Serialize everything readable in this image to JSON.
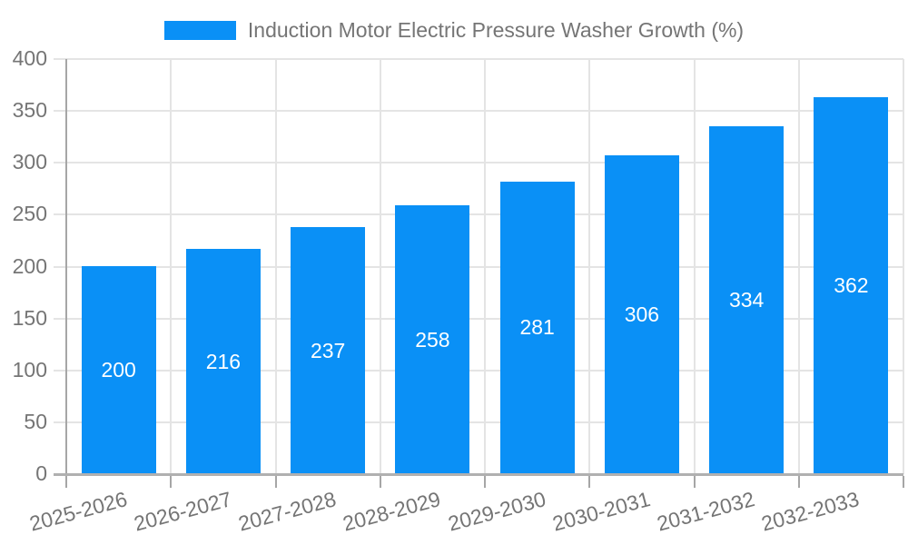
{
  "legend": {
    "label": "Induction Motor Electric Pressure Washer Growth (%)",
    "swatch_color": "#0A90F6"
  },
  "chart_data": {
    "type": "bar",
    "title": "Induction Motor Electric Pressure Washer Growth (%)",
    "categories": [
      "2025-2026",
      "2026-2027",
      "2027-2028",
      "2028-2029",
      "2029-2030",
      "2030-2031",
      "2031-2032",
      "2032-2033"
    ],
    "values": [
      200,
      216,
      237,
      258,
      281,
      306,
      334,
      362
    ],
    "xlabel": "",
    "ylabel": "",
    "ylim": [
      0,
      400
    ],
    "ytick_step": 50,
    "yticks": [
      0,
      50,
      100,
      150,
      200,
      250,
      300,
      350,
      400
    ],
    "grid": true,
    "legend_position": "top-center",
    "value_labels": "inside-center",
    "x_label_rotation_deg": -15
  },
  "colors": {
    "bar": "#0A90F6",
    "value_label": "#ffffff",
    "tick_label": "#757575",
    "legend_text": "#757575",
    "gridline": "#e4e4e4",
    "y_axis_line": "#a6a6a6",
    "x_baseline": "#b0b0b0",
    "background": "#ffffff"
  }
}
